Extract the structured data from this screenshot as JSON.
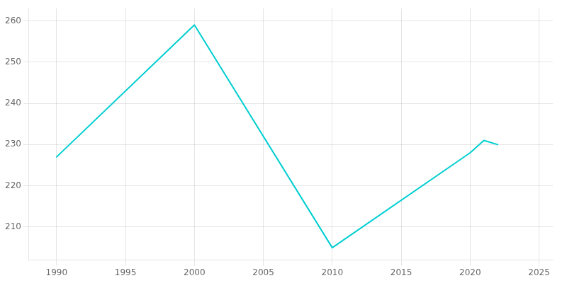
{
  "chart_data": {
    "type": "line",
    "x": [
      1990,
      2000,
      2010,
      2020,
      2021,
      2022
    ],
    "values": [
      227,
      259,
      205,
      228,
      231,
      230
    ],
    "color": "#00CED1",
    "xlim": [
      1988,
      2026
    ],
    "ylim": [
      202,
      263
    ],
    "xticks": [
      1990,
      1995,
      2000,
      2005,
      2010,
      2015,
      2020,
      2025
    ],
    "yticks": [
      210,
      220,
      230,
      240,
      250,
      260
    ],
    "grid": true
  }
}
